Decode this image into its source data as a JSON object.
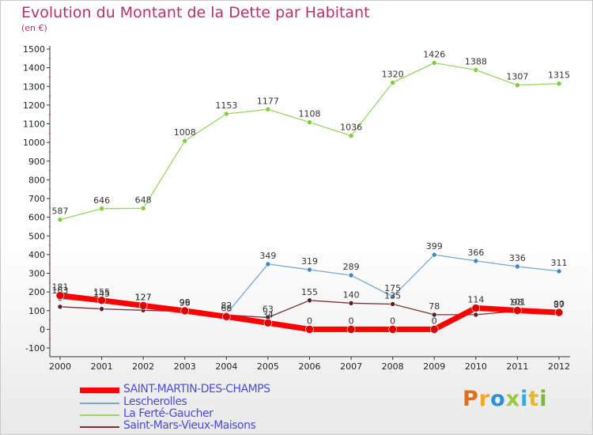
{
  "chart_data": {
    "type": "line",
    "title": "Evolution du Montant de la Dette par Habitant",
    "subtitle": "(en €)",
    "x": [
      2000,
      2001,
      2002,
      2003,
      2004,
      2005,
      2006,
      2007,
      2008,
      2009,
      2010,
      2011,
      2012
    ],
    "ylim": [
      -100,
      1500
    ],
    "y_ticks": [
      -100,
      0,
      100,
      200,
      300,
      400,
      500,
      600,
      700,
      800,
      900,
      1000,
      1100,
      1200,
      1300,
      1400,
      1500
    ],
    "grid": false,
    "legend_position": "bottom-left",
    "series": [
      {
        "name": "La Ferté-Gaucher",
        "color": "#99d669",
        "marker": "#7fcc3c",
        "values": [
          587,
          646,
          648,
          1008,
          1153,
          1177,
          1108,
          1036,
          1320,
          1426,
          1388,
          1307,
          1315
        ],
        "labels": [
          "587",
          "646",
          "648",
          "1008",
          "1153",
          "1177",
          "1108",
          "1036",
          "1320",
          "1426",
          "1388",
          "1307",
          "1315"
        ]
      },
      {
        "name": "Lescherolles",
        "color": "#7aa7cf",
        "marker": "#3f86c7",
        "values": [
          163,
          145,
          127,
          96,
          82,
          349,
          319,
          289,
          175,
          399,
          366,
          336,
          311
        ],
        "labels": [
          "163",
          "145",
          "127",
          "96",
          "82",
          "349",
          "319",
          "289",
          "175",
          "399",
          "366",
          "336",
          "311"
        ]
      },
      {
        "name": "Saint-Mars-Vieux-Maisons",
        "color": "#7a2e3a",
        "marker": "#5a1f26",
        "values": [
          121,
          109,
          102,
          95,
          77,
          63,
          155,
          140,
          135,
          78,
          78,
          98,
          87
        ],
        "labels": [
          "",
          "",
          "",
          "",
          "",
          "63",
          "155",
          "140",
          "135",
          "78",
          "",
          "98",
          "87"
        ]
      },
      {
        "name": "SAINT-MARTIN-DES-CHAMPS",
        "color": "#ff0000",
        "marker": "#dd0000",
        "values": [
          181,
          155,
          127,
          99,
          68,
          34,
          0,
          0,
          0,
          0,
          114,
          101,
          90
        ],
        "labels": [
          "181",
          "155",
          "127",
          "99",
          "68",
          "34",
          "0",
          "0",
          "0",
          "0",
          "114",
          "101",
          "90"
        ]
      }
    ]
  },
  "legend": [
    {
      "label": "SAINT-MARTIN-DES-CHAMPS",
      "color": "#ff0000"
    },
    {
      "label": "Lescherolles",
      "color": "#7aa7cf"
    },
    {
      "label": "La Ferté-Gaucher",
      "color": "#99d669"
    },
    {
      "label": "Saint-Mars-Vieux-Maisons",
      "color": "#7a2e3a"
    }
  ],
  "logo": {
    "text": "Proxiti",
    "colors": [
      "#e26d1b",
      "#f5a623",
      "#2b8ed8",
      "#9bc93a",
      "#3aa8d8",
      "#e8b82c",
      "#7ab940"
    ]
  }
}
